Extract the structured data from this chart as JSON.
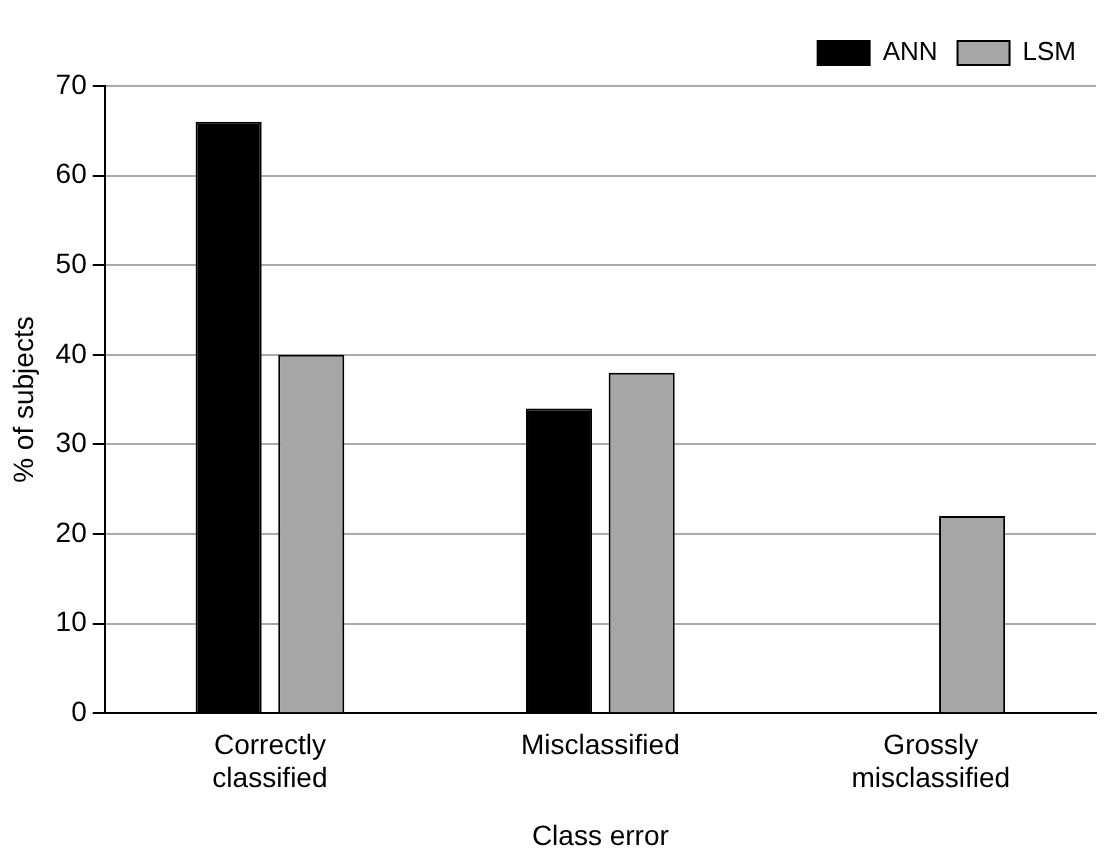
{
  "chart_data": {
    "type": "bar",
    "xlabel": "Class error",
    "ylabel": "% of subjects",
    "categories": [
      "Correctly classified",
      "Misclassified",
      "Grossly misclassified"
    ],
    "series": [
      {
        "name": "ANN",
        "color": "#000000",
        "values": [
          66,
          34,
          0
        ]
      },
      {
        "name": "LSM",
        "color": "#a6a6a6",
        "values": [
          40,
          38,
          22
        ]
      }
    ],
    "ylim": [
      0,
      70
    ],
    "yticks": [
      0,
      10,
      20,
      30,
      40,
      50,
      60,
      70
    ],
    "grid": "y",
    "legend": "top right"
  }
}
